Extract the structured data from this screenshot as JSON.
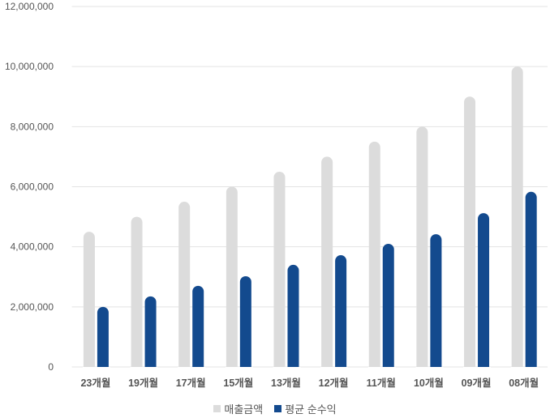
{
  "chart_data": {
    "type": "bar",
    "categories": [
      "23개월",
      "19개월",
      "17개월",
      "15개월",
      "13개월",
      "12개월",
      "11개월",
      "10개월",
      "09개월",
      "08개월"
    ],
    "series": [
      {
        "name": "매출금액",
        "color": "#dcdcdc",
        "values": [
          4500000,
          5000000,
          5500000,
          6000000,
          6500000,
          7000000,
          7500000,
          8000000,
          9000000,
          10000000
        ]
      },
      {
        "name": "평균 순수익",
        "color": "#134a8e",
        "values": [
          2000000,
          2350000,
          2700000,
          3020000,
          3400000,
          3720000,
          4100000,
          4420000,
          5120000,
          5830000
        ]
      }
    ],
    "ylim": [
      0,
      12000000
    ],
    "yticks": [
      "0",
      "2,000,000",
      "4,000,000",
      "6,000,000",
      "8,000,000",
      "10,000,000",
      "12,000,000"
    ],
    "ytick_values": [
      0,
      2000000,
      4000000,
      6000000,
      8000000,
      10000000,
      12000000
    ],
    "grid": true,
    "legend": "bottom-center",
    "title": "",
    "xlabel": "",
    "ylabel": ""
  }
}
